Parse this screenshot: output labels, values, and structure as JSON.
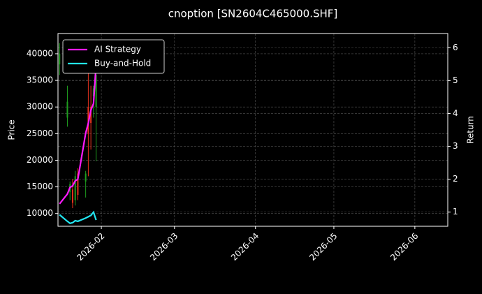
{
  "chart_data": {
    "type": "candlestick",
    "title": "cnoption [SN2604C465000.SHF]",
    "y_label": "Price",
    "y2_label": "Return",
    "x": [
      16,
      19,
      20,
      21,
      22,
      23,
      26,
      27,
      28,
      29,
      30
    ],
    "candles": {
      "open": [
        38000,
        28000,
        14000,
        14500,
        12500,
        17500,
        16000,
        30000,
        30000,
        32000,
        30000
      ],
      "high": [
        42000,
        34000,
        16000,
        16500,
        18000,
        18500,
        18000,
        37000,
        34000,
        34000,
        38000
      ],
      "low": [
        36000,
        26300,
        12500,
        11000,
        11500,
        12500,
        13000,
        17000,
        22000,
        28000,
        19800
      ],
      "close": [
        40000,
        31000,
        15500,
        12000,
        17000,
        13500,
        17500,
        25000,
        27000,
        33500,
        36000
      ]
    },
    "up_color": "#1f9e1f",
    "down_color": "#e8321e",
    "series": [
      {
        "name": "AI Strategy",
        "color": "#ff1aff",
        "axis": "y2",
        "values": [
          1.25,
          1.55,
          1.75,
          1.8,
          1.95,
          2.0,
          3.4,
          3.7,
          4.1,
          4.3,
          5.5
        ]
      },
      {
        "name": "Buy-and-Hold",
        "color": "#22e5f0",
        "axis": "y2",
        "values": [
          0.92,
          0.72,
          0.66,
          0.68,
          0.74,
          0.72,
          0.82,
          0.86,
          0.9,
          1.0,
          0.76
        ]
      }
    ],
    "xlim": [
      15.4,
      164.6
    ],
    "xticks": [
      {
        "value": 32,
        "label": "2026-02"
      },
      {
        "value": 60,
        "label": "2026-03"
      },
      {
        "value": 91,
        "label": "2026-04"
      },
      {
        "value": 121,
        "label": "2026-05"
      },
      {
        "value": 152,
        "label": "2026-06"
      }
    ],
    "ylim": [
      7600,
      43800
    ],
    "yticks": [
      10000,
      15000,
      20000,
      25000,
      30000,
      35000,
      40000
    ],
    "y2lim": [
      0.57,
      6.43
    ],
    "y2ticks": [
      1,
      2,
      3,
      4,
      5,
      6
    ],
    "grid": true,
    "legend": "upper left"
  }
}
